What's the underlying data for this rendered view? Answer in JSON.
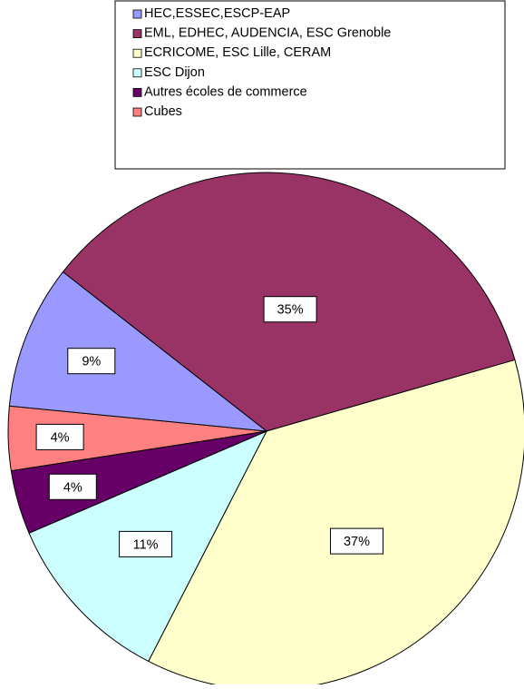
{
  "chart_data": {
    "type": "pie",
    "title": "",
    "legend_position": "top",
    "categories": [
      "HEC,ESSEC,ESCP-EAP",
      "EML, EDHEC, AUDENCIA, ESC Grenoble",
      "ECRICOME, ESC Lille, CERAM",
      "ESC Dijon",
      "Autres écoles de commerce",
      "Cubes"
    ],
    "values": [
      9,
      35,
      37,
      11,
      4,
      4
    ],
    "data_labels": [
      "9%",
      "35%",
      "37%",
      "11%",
      "4%",
      "4%"
    ],
    "colors": [
      "#9999ff",
      "#993366",
      "#ffffcc",
      "#ccffff",
      "#660066",
      "#ff8080"
    ],
    "slice_order_clockwise_from_top_left": [
      "EML, EDHEC, AUDENCIA, ESC Grenoble",
      "ECRICOME, ESC Lille, CERAM",
      "ESC Dijon",
      "Autres écoles de commerce",
      "Cubes",
      "HEC,ESSEC,ESCP-EAP"
    ]
  }
}
